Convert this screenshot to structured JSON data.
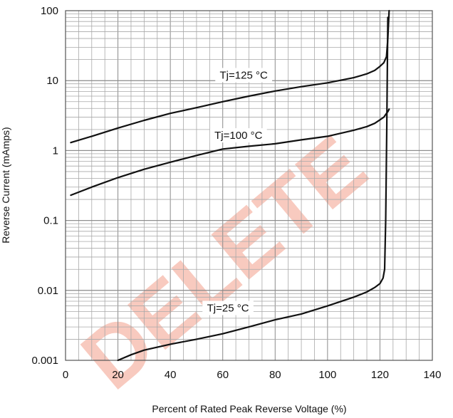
{
  "chart_data": {
    "type": "line",
    "title": "",
    "xlabel": "Percent of Rated Peak Reverse Voltage (%)",
    "ylabel": "Reverse Current (mAmps)",
    "xlim": [
      0,
      140
    ],
    "ylim": [
      0.001,
      100
    ],
    "y_scale": "log",
    "grid": true,
    "x_ticks": [
      "0",
      "20",
      "40",
      "60",
      "80",
      "100",
      "120",
      "140"
    ],
    "y_ticks": [
      "0.001",
      "0.01",
      "0.1",
      "1",
      "10",
      "100"
    ],
    "series": [
      {
        "name": "Tj=125 °C",
        "x": [
          2,
          10,
          20,
          30,
          40,
          50,
          60,
          70,
          80,
          90,
          100,
          110,
          115,
          118,
          120,
          121.5,
          122.5,
          123,
          123.5
        ],
        "y": [
          1.3,
          1.6,
          2.1,
          2.7,
          3.4,
          4.1,
          5.0,
          6.0,
          7.1,
          8.2,
          9.3,
          11,
          12.5,
          14,
          16,
          18,
          22,
          40,
          100
        ]
      },
      {
        "name": "Tj=100 °C",
        "x": [
          2,
          10,
          20,
          30,
          40,
          50,
          60,
          70,
          80,
          90,
          100,
          110,
          115,
          118,
          120,
          121.5,
          122.5,
          123,
          123.5
        ],
        "y": [
          0.23,
          0.3,
          0.41,
          0.54,
          0.68,
          0.85,
          1.05,
          1.15,
          1.25,
          1.42,
          1.6,
          1.95,
          2.2,
          2.45,
          2.75,
          3.0,
          3.4,
          3.6,
          3.9
        ]
      },
      {
        "name": "Tj=25 °C",
        "x": [
          20,
          25,
          30,
          40,
          50,
          60,
          70,
          80,
          90,
          100,
          110,
          115,
          118,
          120,
          121.2,
          121.8,
          122.2,
          122.6,
          123
        ],
        "y": [
          0.001,
          0.0012,
          0.0014,
          0.0017,
          0.002,
          0.0024,
          0.003,
          0.0038,
          0.0046,
          0.006,
          0.008,
          0.0095,
          0.011,
          0.0125,
          0.015,
          0.02,
          0.1,
          2,
          80
        ]
      }
    ],
    "annotations": [
      "Tj=125 °C",
      "Tj=100 °C",
      "Tj=25 °C"
    ],
    "watermark_text": "DELETE",
    "colors": {
      "curve": "#111111",
      "grid": "#8a8a8a",
      "watermark": "#e9542f"
    }
  }
}
